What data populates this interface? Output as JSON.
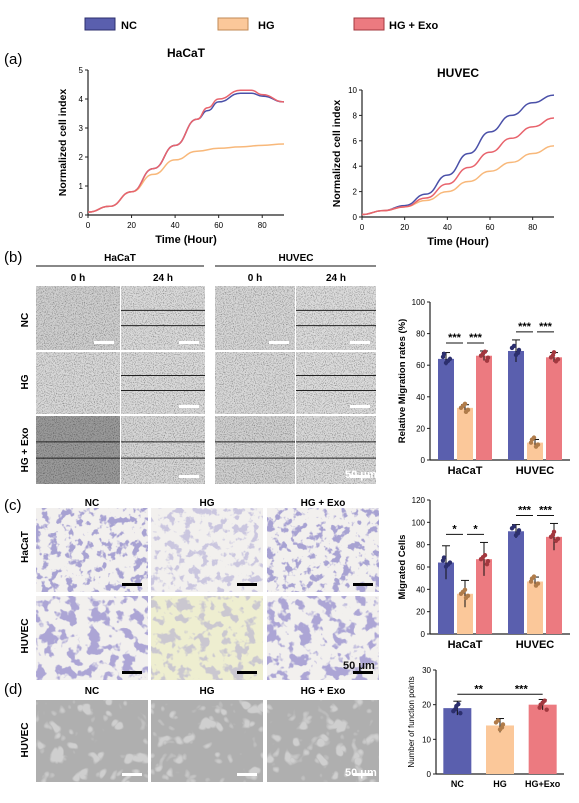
{
  "legend": [
    {
      "label": "NC",
      "color": "#5a5fae"
    },
    {
      "label": "HG",
      "color": "#fbc89a"
    },
    {
      "label": "HG + Exo",
      "color": "#ec7a80"
    }
  ],
  "panels": {
    "a": "(a)",
    "b": "(b)",
    "c": "(c)",
    "d": "(d)"
  },
  "panel_b": {
    "group_headers": [
      "HaCaT",
      "HUVEC"
    ],
    "time_labels": [
      "0 h",
      "24 h",
      "0 h",
      "24 h"
    ],
    "row_labels": [
      "NC",
      "HG",
      "HG + Exo"
    ],
    "scale_text": "50 μm"
  },
  "panel_c": {
    "col_labels": [
      "NC",
      "HG",
      "HG + Exo"
    ],
    "row_labels": [
      "HaCaT",
      "HUVEC"
    ],
    "scale_text": "50 μm"
  },
  "panel_d": {
    "col_labels": [
      "NC",
      "HG",
      "HG + Exo"
    ],
    "row_label": "HUVEC",
    "scale_text": "50 μm"
  },
  "chart_data": [
    {
      "id": "a-hacat",
      "type": "line",
      "title": "HaCaT",
      "xlabel": "Time (Hour)",
      "ylabel": "Normalized cell index",
      "xlim": [
        0,
        90
      ],
      "ylim": [
        0,
        5
      ],
      "xticks": [
        "0",
        "20",
        "40",
        "60",
        "80"
      ],
      "yticks": [
        "0",
        "1",
        "2",
        "3",
        "4",
        "5"
      ],
      "series": [
        {
          "name": "NC",
          "color": "#4a50a8",
          "x": [
            0,
            10,
            20,
            30,
            40,
            50,
            55,
            60,
            70,
            75,
            80,
            90
          ],
          "y": [
            0.1,
            0.3,
            0.8,
            1.6,
            2.4,
            3.3,
            3.6,
            3.9,
            4.2,
            4.2,
            4.1,
            3.9
          ]
        },
        {
          "name": "HG",
          "color": "#f8b87a",
          "x": [
            0,
            10,
            20,
            30,
            40,
            50,
            60,
            70,
            80,
            90
          ],
          "y": [
            0.1,
            0.3,
            0.8,
            1.4,
            1.9,
            2.2,
            2.3,
            2.35,
            2.4,
            2.45
          ]
        },
        {
          "name": "HG + Exo",
          "color": "#e8636c",
          "x": [
            0,
            10,
            20,
            30,
            40,
            50,
            55,
            60,
            70,
            75,
            80,
            90
          ],
          "y": [
            0.1,
            0.3,
            0.8,
            1.6,
            2.4,
            3.3,
            3.7,
            4.0,
            4.3,
            4.3,
            4.15,
            3.9
          ]
        }
      ]
    },
    {
      "id": "a-huvec",
      "type": "line",
      "title": "HUVEC",
      "xlabel": "Time (Hour)",
      "ylabel": "Normalized cell index",
      "xlim": [
        0,
        90
      ],
      "ylim": [
        0,
        10
      ],
      "xticks": [
        "0",
        "20",
        "40",
        "60",
        "80"
      ],
      "yticks": [
        "0",
        "2",
        "4",
        "6",
        "8",
        "10"
      ],
      "series": [
        {
          "name": "NC",
          "color": "#4a50a8",
          "x": [
            0,
            10,
            20,
            30,
            40,
            50,
            60,
            70,
            80,
            90
          ],
          "y": [
            0.2,
            0.5,
            0.9,
            1.8,
            3.3,
            5.0,
            6.7,
            8.0,
            9.0,
            9.6
          ]
        },
        {
          "name": "HG",
          "color": "#f8b87a",
          "x": [
            0,
            10,
            20,
            30,
            40,
            50,
            60,
            70,
            80,
            90
          ],
          "y": [
            0.2,
            0.5,
            0.8,
            1.3,
            2.0,
            2.8,
            3.6,
            4.3,
            5.0,
            5.6
          ]
        },
        {
          "name": "HG + Exo",
          "color": "#e8636c",
          "x": [
            0,
            10,
            20,
            30,
            40,
            50,
            60,
            70,
            80,
            90
          ],
          "y": [
            0.2,
            0.5,
            0.8,
            1.5,
            2.6,
            3.9,
            5.1,
            6.2,
            7.1,
            7.8
          ]
        }
      ]
    },
    {
      "id": "b-bar",
      "type": "bar",
      "ylabel": "Relative Migration rates  (%)",
      "ylim": [
        0,
        100
      ],
      "yticks": [
        "0",
        "20",
        "40",
        "60",
        "80",
        "100"
      ],
      "categories": [
        "HaCaT",
        "HUVEC"
      ],
      "series": [
        {
          "name": "NC",
          "values": [
            64,
            69
          ],
          "err": [
            4,
            7
          ]
        },
        {
          "name": "HG",
          "values": [
            33,
            11
          ],
          "err": [
            2,
            2
          ]
        },
        {
          "name": "HG + Exo",
          "values": [
            66,
            65
          ],
          "err": [
            3,
            3
          ]
        }
      ],
      "significance": [
        "***",
        "***",
        "***",
        "***"
      ]
    },
    {
      "id": "c-bar",
      "type": "bar",
      "ylabel": "Migrated Cells",
      "ylim": [
        0,
        120
      ],
      "yticks": [
        "0",
        "20",
        "40",
        "60",
        "80",
        "100",
        "120"
      ],
      "categories": [
        "HaCaT",
        "HUVEC"
      ],
      "series": [
        {
          "name": "NC",
          "values": [
            64,
            92
          ],
          "err": [
            15,
            6
          ]
        },
        {
          "name": "HG",
          "values": [
            36,
            47
          ],
          "err": [
            12,
            4
          ]
        },
        {
          "name": "HG + Exo",
          "values": [
            67,
            87
          ],
          "err": [
            15,
            12
          ]
        }
      ],
      "significance": [
        "*",
        "*",
        "***",
        "***"
      ]
    },
    {
      "id": "d-bar",
      "type": "bar",
      "ylabel": "Number of function points",
      "ylim": [
        0,
        30
      ],
      "yticks": [
        "0",
        "10",
        "20",
        "30"
      ],
      "categories": [
        "NC",
        "HG",
        "HG+Exo"
      ],
      "values": [
        19,
        14,
        20
      ],
      "err": [
        2,
        2,
        1.5
      ],
      "significance": [
        "**",
        "***"
      ]
    }
  ]
}
